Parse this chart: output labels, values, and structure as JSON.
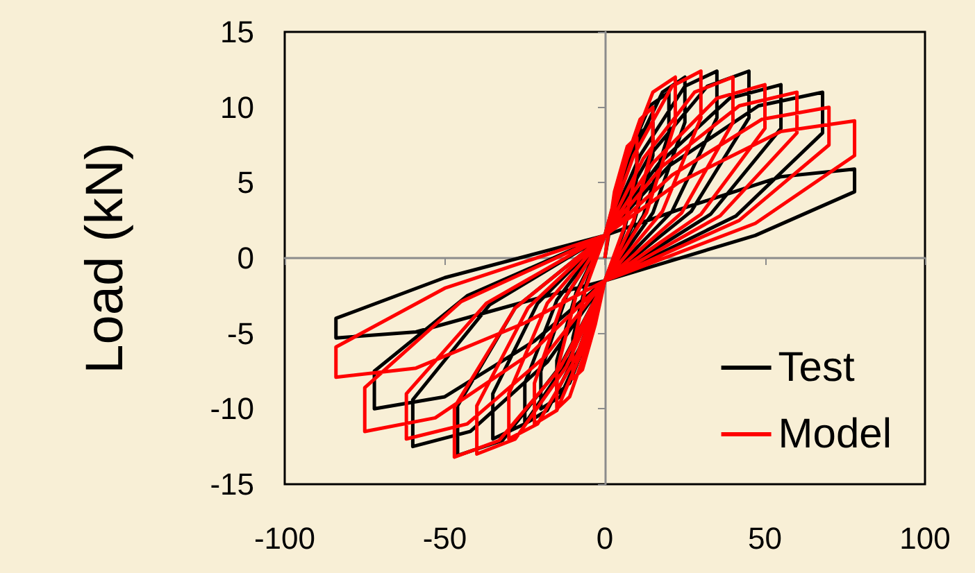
{
  "chart_data": {
    "type": "line",
    "ylabel": "Load (kN)",
    "xlim": [
      -100,
      100
    ],
    "xticks": [
      -100,
      -50,
      0,
      50,
      100
    ],
    "ylim": [
      -15,
      15
    ],
    "yticks": [
      -15,
      -10,
      -5,
      0,
      5,
      10,
      15
    ],
    "legend": "bottom right",
    "marker": "none",
    "line_style": "solid",
    "series": [
      {
        "name": "Test",
        "color": "#000000",
        "x": [
          0,
          3,
          7,
          10,
          10,
          6,
          0,
          -3,
          -7,
          -10,
          -10,
          -6,
          0,
          5,
          11,
          15,
          15,
          9,
          0,
          -5,
          -11,
          -15,
          -15,
          -9,
          0,
          6,
          14,
          20,
          20,
          12,
          0,
          -6,
          -14,
          -20,
          -20,
          -12,
          0,
          8,
          18,
          25,
          25,
          15,
          0,
          -8,
          -18,
          -25,
          -25,
          -15,
          0,
          11,
          25,
          35,
          35,
          21,
          0,
          -11,
          -25,
          -35,
          -35,
          -21,
          0,
          14,
          32,
          45,
          45,
          27,
          0,
          -14,
          -32,
          -46,
          -46,
          -28,
          0,
          17,
          39,
          55,
          55,
          33,
          0,
          -18,
          -42,
          -60,
          -60,
          -36,
          0,
          20,
          48,
          68,
          68,
          41,
          0,
          -22,
          -50,
          -72,
          -72,
          -43,
          0,
          23,
          55,
          78,
          78,
          47,
          0,
          -25,
          -59,
          -84,
          -84,
          -50,
          0
        ],
        "values": [
          0,
          3.9,
          6.4,
          7,
          5.3,
          1.8,
          -1.5,
          -3.9,
          -6.4,
          -7,
          -5.3,
          -1.8,
          1.5,
          5,
          8.3,
          9,
          6.8,
          2.3,
          -1.5,
          -5,
          -8.3,
          -9,
          -6.8,
          -2.3,
          1.5,
          6.1,
          10.1,
          11,
          8.3,
          2.8,
          -1.5,
          -5.5,
          -9.2,
          -10,
          -7.5,
          -2.5,
          1.5,
          6.6,
          11,
          12,
          9,
          3,
          -1.5,
          -6,
          -10.1,
          -11,
          -8.3,
          -2.8,
          1.5,
          6.8,
          11.4,
          12.4,
          9.3,
          3.1,
          -1.5,
          -6.6,
          -11,
          -12,
          -9,
          -3,
          1.5,
          6.8,
          11.4,
          12.4,
          9.3,
          3.1,
          -1.5,
          -7.2,
          -12.1,
          -13.1,
          -9.8,
          -3.3,
          1.5,
          6.3,
          10.6,
          11.5,
          8.6,
          2.9,
          -1.5,
          -6.9,
          -11.5,
          -12.5,
          -9.4,
          -3.1,
          1.5,
          6.1,
          10.1,
          11,
          8.3,
          2.8,
          -1.5,
          -5.5,
          -9.2,
          -10,
          -7.5,
          -2.5,
          1.5,
          3.2,
          5.4,
          5.9,
          4.4,
          1.5,
          -1.5,
          -2.9,
          -4.9,
          -5.3,
          -4,
          -1.3,
          1.5
        ]
      },
      {
        "name": "Model",
        "color": "#ff0000",
        "x": [
          0,
          3,
          7,
          10,
          10,
          6,
          0,
          -3,
          -7,
          -10,
          -10,
          -6,
          0,
          5,
          11,
          15,
          15,
          9,
          0,
          -5,
          -11,
          -15,
          -15,
          -9,
          0,
          7,
          15,
          22,
          22,
          13,
          0,
          -7,
          -15,
          -22,
          -22,
          -13,
          0,
          9,
          21,
          30,
          30,
          18,
          0,
          -9,
          -21,
          -30,
          -30,
          -18,
          0,
          12,
          28,
          40,
          40,
          24,
          0,
          -12,
          -28,
          -40,
          -40,
          -24,
          0,
          15,
          35,
          50,
          50,
          30,
          0,
          -14,
          -33,
          -47,
          -47,
          -28,
          0,
          18,
          42,
          60,
          60,
          36,
          0,
          -19,
          -43,
          -62,
          -62,
          -37,
          0,
          21,
          49,
          70,
          70,
          42,
          0,
          -23,
          -53,
          -75,
          -75,
          -45,
          0,
          23,
          55,
          78,
          78,
          47,
          0,
          -25,
          -59,
          -84,
          -84,
          -50,
          0
        ],
        "values": [
          0,
          4.4,
          7.4,
          8,
          6,
          2,
          -1.5,
          -4.4,
          -7.4,
          -8,
          -6,
          -2,
          1.5,
          5.5,
          9.2,
          10,
          7.5,
          2.5,
          -1.5,
          -5.5,
          -9.2,
          -10,
          -7.5,
          -2.5,
          1.5,
          6.6,
          11,
          12,
          9,
          3,
          -1.5,
          -6.1,
          -10.1,
          -11,
          -8.3,
          -2.8,
          1.5,
          6.8,
          11.4,
          12.4,
          9.3,
          3.1,
          -1.5,
          -6.6,
          -11,
          -12,
          -9,
          -3,
          1.5,
          6.6,
          11,
          12,
          9,
          3,
          -1.5,
          -7.2,
          -12,
          -13,
          -9.8,
          -3.3,
          1.5,
          6.3,
          10.6,
          11.5,
          8.6,
          2.9,
          -1.5,
          -7.3,
          -12.1,
          -13.2,
          -9.9,
          -3.3,
          1.5,
          6.1,
          10.1,
          11,
          8.3,
          2.8,
          -1.5,
          -6.6,
          -11,
          -12,
          -9,
          -3,
          1.5,
          5.5,
          9.2,
          10,
          7.5,
          2.5,
          -1.5,
          -6.3,
          -10.6,
          -11.5,
          -8.6,
          -2.9,
          1.5,
          5,
          8.4,
          9.1,
          6.8,
          2.3,
          -1.5,
          -4.3,
          -7.3,
          -7.9,
          -5.9,
          -2,
          1.5
        ]
      }
    ]
  }
}
